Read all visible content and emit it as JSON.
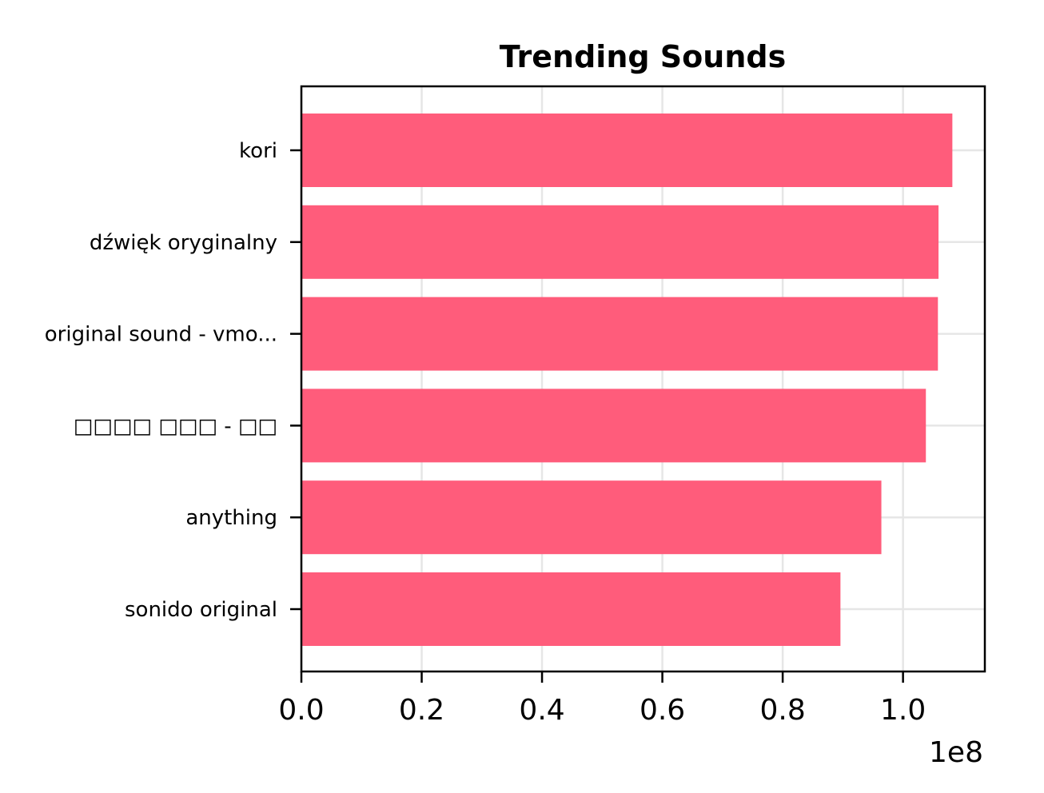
{
  "chart_data": {
    "type": "bar",
    "orientation": "horizontal",
    "title": "Trending Sounds",
    "xlabel": "",
    "ylabel": "",
    "categories": [
      "kori",
      "dźwięk oryginalny",
      "original sound - vmo...",
      "□□□□ □□□ - □□",
      "anything",
      "sonido original"
    ],
    "values": [
      108200000,
      105900000,
      105800000,
      103800000,
      96400000,
      89600000
    ],
    "xlim": [
      0,
      113600000
    ],
    "xticks": [
      0,
      20000000,
      40000000,
      60000000,
      80000000,
      100000000
    ],
    "xtick_labels": [
      "0.0",
      "0.2",
      "0.4",
      "0.6",
      "0.8",
      "1.0"
    ],
    "x_offset_label": "1e8",
    "grid": true,
    "legend": "none",
    "bar_color": "#ff5777"
  }
}
